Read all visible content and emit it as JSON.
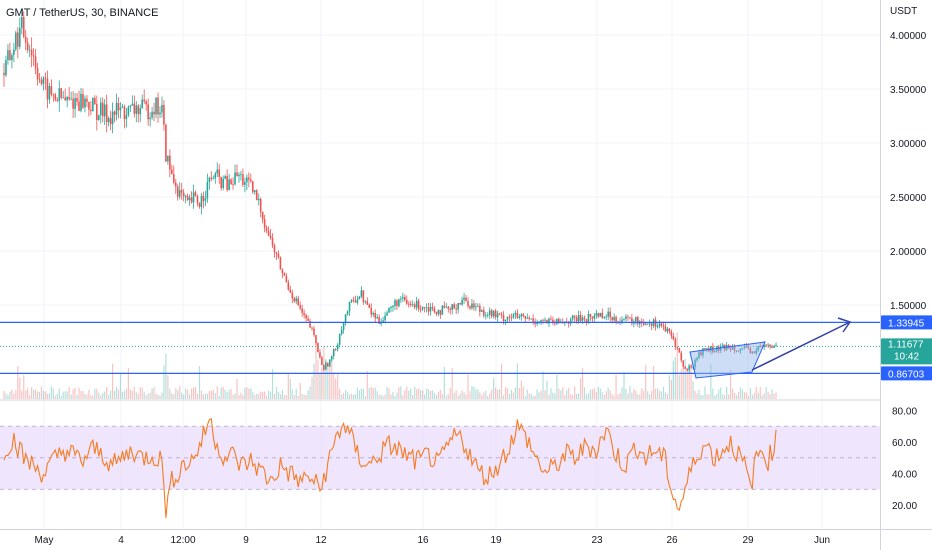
{
  "header": {
    "symbol_title": "GMT / TetherUS, 30, BINANCE"
  },
  "price_scale": {
    "currency": "USDT",
    "ticks": [
      "4.00000",
      "3.50000",
      "3.00000",
      "2.50000",
      "2.00000",
      "1.50000"
    ]
  },
  "rsi_scale": {
    "ticks": [
      "80.00",
      "60.00",
      "40.00",
      "20.00"
    ]
  },
  "time_axis": {
    "labels": [
      "May",
      "4",
      "12:00",
      "9",
      "12",
      "16",
      "19",
      "23",
      "26",
      "29",
      "Jun"
    ]
  },
  "tags": {
    "resistance": "1.33945",
    "last_price": "1.11677",
    "countdown": "10:42",
    "support": "0.86703"
  },
  "colors": {
    "up": "#26a69a",
    "down": "#ef5350",
    "hline": "#2962ff",
    "channel_fill": "#90b4e8",
    "arrow": "#3042a8",
    "rsi_line": "#f57c24",
    "rsi_band": "#e9dcfb",
    "last_price_tag": "#26a69a"
  },
  "chart_data": [
    {
      "type": "candlestick",
      "symbol": "GMT / TetherUS",
      "interval": "30",
      "exchange": "BINANCE",
      "unit": "USDT",
      "ylim": [
        0.65,
        4.15
      ],
      "price_path": [
        [
          0,
          3.65
        ],
        [
          3,
          3.8
        ],
        [
          6,
          3.95
        ],
        [
          9,
          4.05
        ],
        [
          12,
          3.95
        ],
        [
          15,
          3.8
        ],
        [
          19,
          3.55
        ],
        [
          23,
          3.45
        ],
        [
          28,
          3.42
        ],
        [
          32,
          3.38
        ],
        [
          37,
          3.4
        ],
        [
          42,
          3.38
        ],
        [
          47,
          3.3
        ],
        [
          53,
          3.25
        ],
        [
          58,
          3.3
        ],
        [
          63,
          3.28
        ],
        [
          67,
          3.32
        ],
        [
          72,
          3.3
        ],
        [
          76,
          3.35
        ],
        [
          80,
          3.3
        ],
        [
          82,
          2.9
        ],
        [
          84,
          2.75
        ],
        [
          86,
          2.65
        ],
        [
          90,
          2.5
        ],
        [
          93,
          2.42
        ],
        [
          96,
          2.48
        ],
        [
          99,
          2.45
        ],
        [
          103,
          2.6
        ],
        [
          106,
          2.7
        ],
        [
          110,
          2.65
        ],
        [
          114,
          2.6
        ],
        [
          118,
          2.7
        ],
        [
          122,
          2.65
        ],
        [
          126,
          2.55
        ],
        [
          130,
          2.4
        ],
        [
          133,
          2.2
        ],
        [
          136,
          2.05
        ],
        [
          139,
          1.9
        ],
        [
          142,
          1.75
        ],
        [
          146,
          1.6
        ],
        [
          149,
          1.5
        ],
        [
          152,
          1.38
        ],
        [
          155,
          1.3
        ],
        [
          158,
          1.15
        ],
        [
          160,
          1.0
        ],
        [
          162,
          0.92
        ],
        [
          165,
          0.98
        ],
        [
          168,
          1.1
        ],
        [
          171,
          1.3
        ],
        [
          174,
          1.45
        ],
        [
          177,
          1.55
        ],
        [
          181,
          1.6
        ],
        [
          185,
          1.45
        ],
        [
          190,
          1.35
        ],
        [
          195,
          1.45
        ],
        [
          200,
          1.55
        ],
        [
          205,
          1.5
        ],
        [
          210,
          1.5
        ],
        [
          215,
          1.48
        ],
        [
          220,
          1.45
        ],
        [
          226,
          1.45
        ],
        [
          232,
          1.55
        ],
        [
          237,
          1.5
        ],
        [
          242,
          1.45
        ],
        [
          247,
          1.42
        ],
        [
          252,
          1.38
        ],
        [
          257,
          1.4
        ],
        [
          262,
          1.38
        ],
        [
          268,
          1.36
        ],
        [
          273,
          1.35
        ],
        [
          279,
          1.33
        ],
        [
          284,
          1.35
        ],
        [
          290,
          1.37
        ],
        [
          296,
          1.38
        ],
        [
          302,
          1.42
        ],
        [
          306,
          1.4
        ],
        [
          310,
          1.38
        ],
        [
          315,
          1.36
        ],
        [
          320,
          1.35
        ],
        [
          326,
          1.34
        ],
        [
          332,
          1.33
        ],
        [
          336,
          1.25
        ],
        [
          339,
          1.18
        ],
        [
          342,
          1.05
        ],
        [
          344,
          0.92
        ],
        [
          346,
          0.9
        ],
        [
          349,
          0.95
        ],
        [
          352,
          1.05
        ],
        [
          356,
          1.1
        ],
        [
          360,
          1.08
        ],
        [
          364,
          1.1
        ],
        [
          368,
          1.12
        ],
        [
          372,
          1.1
        ],
        [
          376,
          1.08
        ],
        [
          379,
          1.06
        ],
        [
          382,
          1.1
        ],
        [
          385,
          1.12
        ],
        [
          388,
          1.11
        ],
        [
          391,
          1.12
        ]
      ],
      "drawings": {
        "resistance_level": 1.33945,
        "support_level": 0.86703,
        "last_price": 1.11677
      }
    },
    {
      "type": "line",
      "name": "RSI",
      "ylim": [
        10,
        85
      ],
      "band": [
        30,
        70
      ],
      "path": [
        [
          0,
          55
        ],
        [
          5,
          62
        ],
        [
          10,
          50
        ],
        [
          15,
          45
        ],
        [
          20,
          40
        ],
        [
          25,
          48
        ],
        [
          30,
          55
        ],
        [
          35,
          52
        ],
        [
          40,
          48
        ],
        [
          45,
          56
        ],
        [
          50,
          52
        ],
        [
          55,
          45
        ],
        [
          60,
          50
        ],
        [
          65,
          55
        ],
        [
          70,
          50
        ],
        [
          75,
          52
        ],
        [
          80,
          48
        ],
        [
          82,
          18
        ],
        [
          85,
          35
        ],
        [
          90,
          45
        ],
        [
          95,
          48
        ],
        [
          100,
          60
        ],
        [
          104,
          75
        ],
        [
          108,
          58
        ],
        [
          112,
          50
        ],
        [
          116,
          52
        ],
        [
          120,
          45
        ],
        [
          125,
          48
        ],
        [
          130,
          42
        ],
        [
          135,
          35
        ],
        [
          140,
          45
        ],
        [
          145,
          40
        ],
        [
          150,
          35
        ],
        [
          155,
          38
        ],
        [
          160,
          30
        ],
        [
          164,
          45
        ],
        [
          168,
          62
        ],
        [
          172,
          72
        ],
        [
          176,
          62
        ],
        [
          180,
          50
        ],
        [
          185,
          45
        ],
        [
          190,
          52
        ],
        [
          195,
          58
        ],
        [
          200,
          55
        ],
        [
          205,
          50
        ],
        [
          210,
          48
        ],
        [
          215,
          52
        ],
        [
          220,
          45
        ],
        [
          225,
          58
        ],
        [
          230,
          65
        ],
        [
          235,
          55
        ],
        [
          240,
          42
        ],
        [
          245,
          38
        ],
        [
          250,
          45
        ],
        [
          255,
          55
        ],
        [
          260,
          70
        ],
        [
          265,
          62
        ],
        [
          270,
          48
        ],
        [
          275,
          40
        ],
        [
          280,
          46
        ],
        [
          285,
          52
        ],
        [
          290,
          50
        ],
        [
          295,
          58
        ],
        [
          300,
          55
        ],
        [
          305,
          68
        ],
        [
          310,
          52
        ],
        [
          315,
          45
        ],
        [
          320,
          58
        ],
        [
          325,
          50
        ],
        [
          330,
          55
        ],
        [
          335,
          48
        ],
        [
          339,
          25
        ],
        [
          342,
          18
        ],
        [
          345,
          30
        ],
        [
          348,
          42
        ],
        [
          352,
          55
        ],
        [
          356,
          58
        ],
        [
          360,
          50
        ],
        [
          364,
          55
        ],
        [
          368,
          60
        ],
        [
          372,
          52
        ],
        [
          376,
          42
        ],
        [
          378,
          30
        ],
        [
          381,
          50
        ],
        [
          384,
          55
        ],
        [
          387,
          48
        ],
        [
          391,
          62
        ]
      ]
    }
  ]
}
